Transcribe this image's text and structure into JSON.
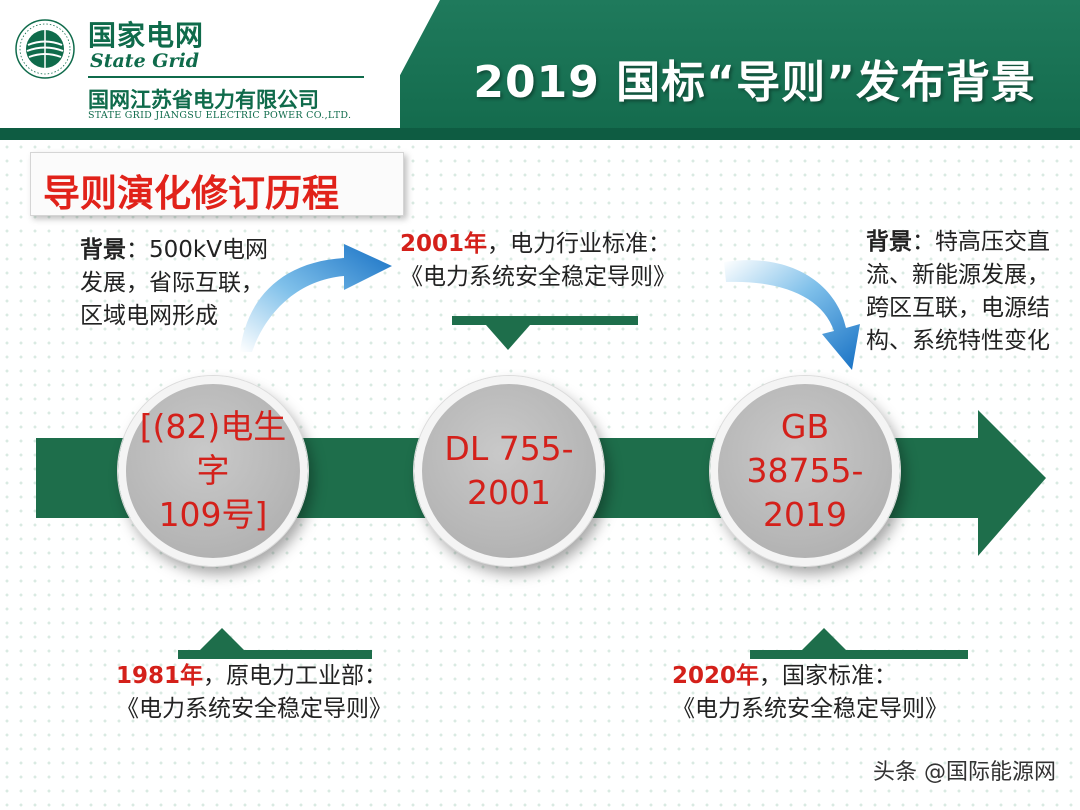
{
  "header": {
    "logo_cn": "国家电网",
    "logo_en": "State Grid",
    "company_cn": "国网江苏省电力有限公司",
    "company_en": "STATE GRID JIANGSU ELECTRIC POWER CO.,LTD.",
    "title": "2019 国标“导则”发布背景",
    "colors": {
      "header_green": "#1f7a5c",
      "accent_red": "#d4201a",
      "timeline_green": "#1e6e4b"
    }
  },
  "section": {
    "title": "导则演化修订历程"
  },
  "notes": {
    "left_top": {
      "label": "背景",
      "lines": [
        "：500kV电网",
        "发展，省际互联，",
        "区域电网形成"
      ]
    },
    "mid_top": {
      "year": "2001年",
      "rest": "，电力行业标准：",
      "doc": "《电力系统安全稳定导则》"
    },
    "right_top": {
      "label": "背景",
      "lines": [
        "：特高压交直",
        "流、新能源发展，",
        "跨区互联，电源结",
        "构、系统特性变化"
      ]
    },
    "left_bottom": {
      "year": "1981年",
      "rest": "，原电力工业部：",
      "doc": "《电力系统安全稳定导则》"
    },
    "right_bottom": {
      "year": "2020年",
      "rest": "，国家标准：",
      "doc": "《电力系统安全稳定导则》"
    }
  },
  "timeline": {
    "milestones": [
      {
        "label": "[(82)电生字\n109号]"
      },
      {
        "label": "DL 755-\n2001"
      },
      {
        "label": "GB 38755-\n2019"
      }
    ]
  },
  "watermark": "头条 @国际能源网"
}
